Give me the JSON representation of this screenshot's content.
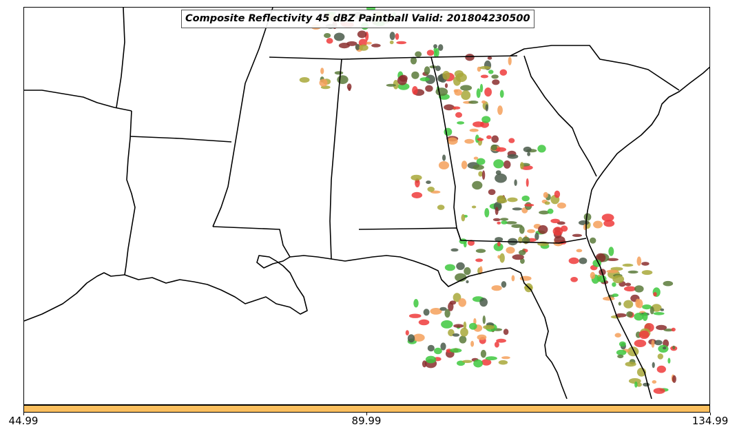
{
  "title": "Composite Reflectivity 45 dBZ Paintball Valid: 201804230500",
  "colorbar": {
    "color": "#fbbf5e",
    "ticks": [
      "44.99",
      "89.99",
      "134.99"
    ]
  },
  "map": {
    "region": "Southeastern United States",
    "states_shown": [
      "Texas",
      "Louisiana",
      "Arkansas",
      "Mississippi",
      "Alabama",
      "Tennessee",
      "Georgia",
      "South Carolina",
      "Florida"
    ],
    "ensemble_colors": [
      "#ee3b3b",
      "#f5a05a",
      "#3ec83e",
      "#8b2e2e",
      "#5a7a3a",
      "#a8a83a",
      "#4a5a4a"
    ]
  }
}
